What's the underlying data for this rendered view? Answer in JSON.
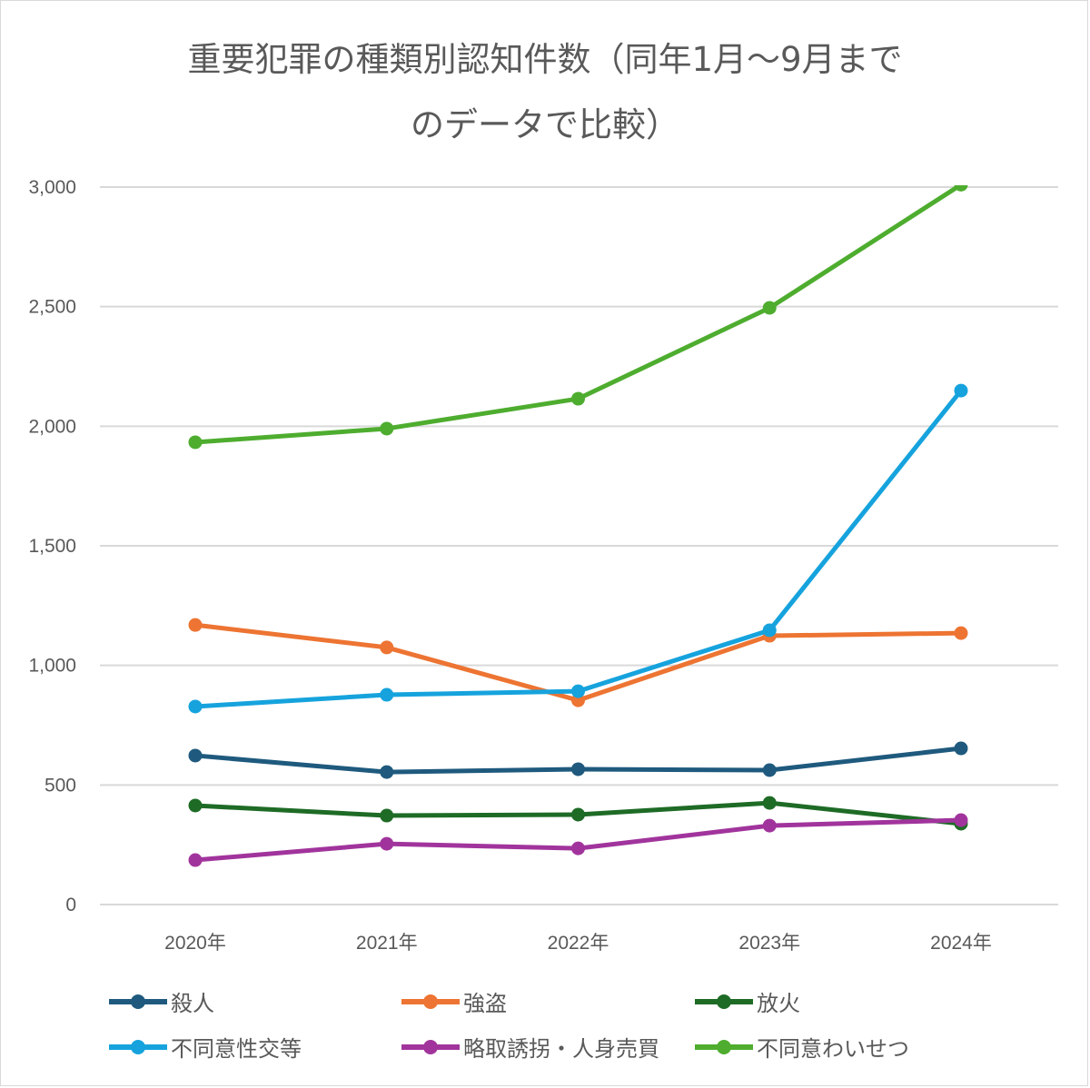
{
  "chart_data": {
    "type": "line",
    "title": "重要犯罪の種類別認知件数（同年1月～9月までのデータで比較）",
    "title_lines": [
      "重要犯罪の種類別認知件数（同年1月～9月まで",
      "のデータで比較）"
    ],
    "categories": [
      "2020年",
      "2021年",
      "2022年",
      "2023年",
      "2024年"
    ],
    "ylim": [
      0,
      3000
    ],
    "yticks": [
      0,
      500,
      1000,
      1500,
      2000,
      2500,
      3000
    ],
    "ytick_labels": [
      "0",
      "500",
      "1,000",
      "1,500",
      "2,000",
      "2,500",
      "3,000"
    ],
    "grid": true,
    "legend_position": "bottom",
    "xlabel": "",
    "ylabel": "",
    "series": [
      {
        "name": "殺人",
        "color": "#1f5a7e",
        "values": [
          623,
          554,
          566,
          562,
          653
        ]
      },
      {
        "name": "強盗",
        "color": "#ed7432",
        "values": [
          1169,
          1075,
          854,
          1124,
          1135
        ]
      },
      {
        "name": "放火",
        "color": "#1e6b26",
        "values": [
          414,
          372,
          376,
          425,
          338
        ]
      },
      {
        "name": "不同意性交等",
        "color": "#16a3dd",
        "values": [
          828,
          877,
          892,
          1147,
          2149
        ]
      },
      {
        "name": "略取誘拐・人身売買",
        "color": "#a1349c",
        "values": [
          186,
          254,
          235,
          330,
          353
        ]
      },
      {
        "name": "不同意わいせつ",
        "color": "#4ead2f",
        "values": [
          1933,
          1990,
          2115,
          2495,
          3010
        ]
      }
    ]
  }
}
